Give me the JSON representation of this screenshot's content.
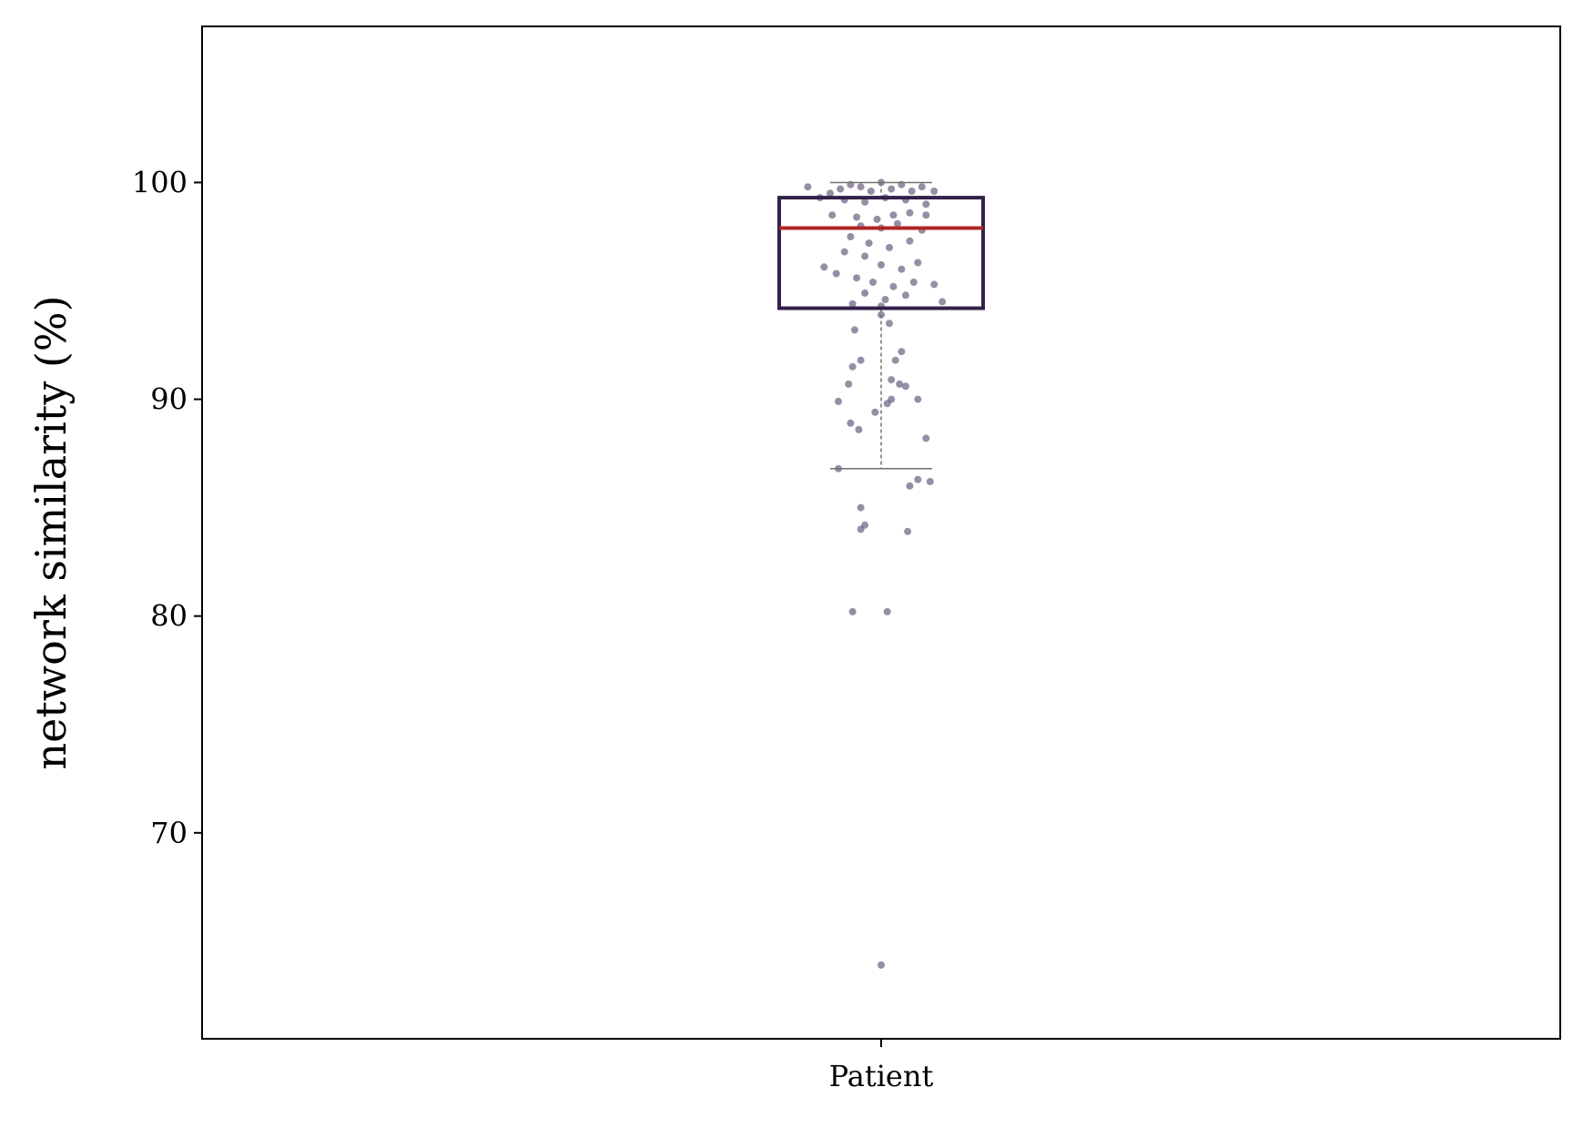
{
  "chart_data": {
    "type": "box",
    "title": "",
    "xlabel": "",
    "ylabel": "network similarity (%)",
    "categories": [
      "Patient"
    ],
    "ylim": [
      60.5,
      107.2
    ],
    "yticks": [
      70,
      80,
      90,
      100
    ],
    "grid": false,
    "legend": "none",
    "colors": {
      "box_edge": "#33214a",
      "median": "#b22428",
      "whisker": "#707070",
      "points": "#52436a"
    },
    "box": {
      "q1": 94.2,
      "median": 97.9,
      "q3": 99.3,
      "whisker_low": 86.8,
      "whisker_high": 100.0
    },
    "points": [
      [
        -0.36,
        99.8
      ],
      [
        -0.25,
        99.5
      ],
      [
        -0.2,
        99.7
      ],
      [
        -0.15,
        99.9
      ],
      [
        -0.1,
        99.8
      ],
      [
        -0.05,
        99.6
      ],
      [
        0.0,
        100.0
      ],
      [
        0.05,
        99.7
      ],
      [
        0.1,
        99.9
      ],
      [
        0.15,
        99.6
      ],
      [
        0.2,
        99.8
      ],
      [
        0.26,
        99.6
      ],
      [
        -0.3,
        99.3
      ],
      [
        -0.18,
        99.2
      ],
      [
        -0.08,
        99.1
      ],
      [
        0.02,
        99.3
      ],
      [
        0.12,
        99.2
      ],
      [
        0.22,
        99.0
      ],
      [
        -0.24,
        98.5
      ],
      [
        -0.12,
        98.4
      ],
      [
        -0.02,
        98.3
      ],
      [
        0.06,
        98.5
      ],
      [
        0.14,
        98.6
      ],
      [
        0.22,
        98.5
      ],
      [
        -0.1,
        98.0
      ],
      [
        0.0,
        97.9
      ],
      [
        0.08,
        98.1
      ],
      [
        0.2,
        97.8
      ],
      [
        -0.15,
        97.5
      ],
      [
        -0.06,
        97.2
      ],
      [
        0.04,
        97.0
      ],
      [
        0.14,
        97.3
      ],
      [
        -0.18,
        96.8
      ],
      [
        -0.08,
        96.6
      ],
      [
        0.0,
        96.2
      ],
      [
        0.1,
        96.0
      ],
      [
        0.18,
        96.3
      ],
      [
        -0.22,
        95.8
      ],
      [
        -0.12,
        95.6
      ],
      [
        -0.04,
        95.4
      ],
      [
        0.06,
        95.2
      ],
      [
        0.16,
        95.4
      ],
      [
        0.26,
        95.3
      ],
      [
        -0.28,
        96.1
      ],
      [
        -0.08,
        94.9
      ],
      [
        0.02,
        94.6
      ],
      [
        0.12,
        94.8
      ],
      [
        0.3,
        94.5
      ],
      [
        -0.14,
        94.4
      ],
      [
        0.0,
        94.3
      ],
      [
        0.0,
        93.9
      ],
      [
        0.04,
        93.5
      ],
      [
        -0.13,
        93.2
      ],
      [
        0.1,
        92.2
      ],
      [
        -0.1,
        91.8
      ],
      [
        -0.14,
        91.5
      ],
      [
        0.07,
        91.8
      ],
      [
        -0.16,
        90.7
      ],
      [
        0.05,
        90.9
      ],
      [
        0.09,
        90.7
      ],
      [
        0.12,
        90.6
      ],
      [
        -0.21,
        89.9
      ],
      [
        0.05,
        90.0
      ],
      [
        0.18,
        90.0
      ],
      [
        0.03,
        89.8
      ],
      [
        -0.03,
        89.4
      ],
      [
        -0.15,
        88.9
      ],
      [
        -0.11,
        88.6
      ],
      [
        0.22,
        88.2
      ],
      [
        -0.21,
        86.8
      ],
      [
        0.18,
        86.3
      ],
      [
        0.14,
        86.0
      ],
      [
        0.24,
        86.2
      ],
      [
        -0.1,
        85.0
      ],
      [
        -0.1,
        84.0
      ],
      [
        -0.08,
        84.2
      ],
      [
        0.13,
        83.9
      ],
      [
        -0.14,
        80.2
      ],
      [
        0.03,
        80.2
      ],
      [
        0.0,
        63.9
      ]
    ]
  }
}
